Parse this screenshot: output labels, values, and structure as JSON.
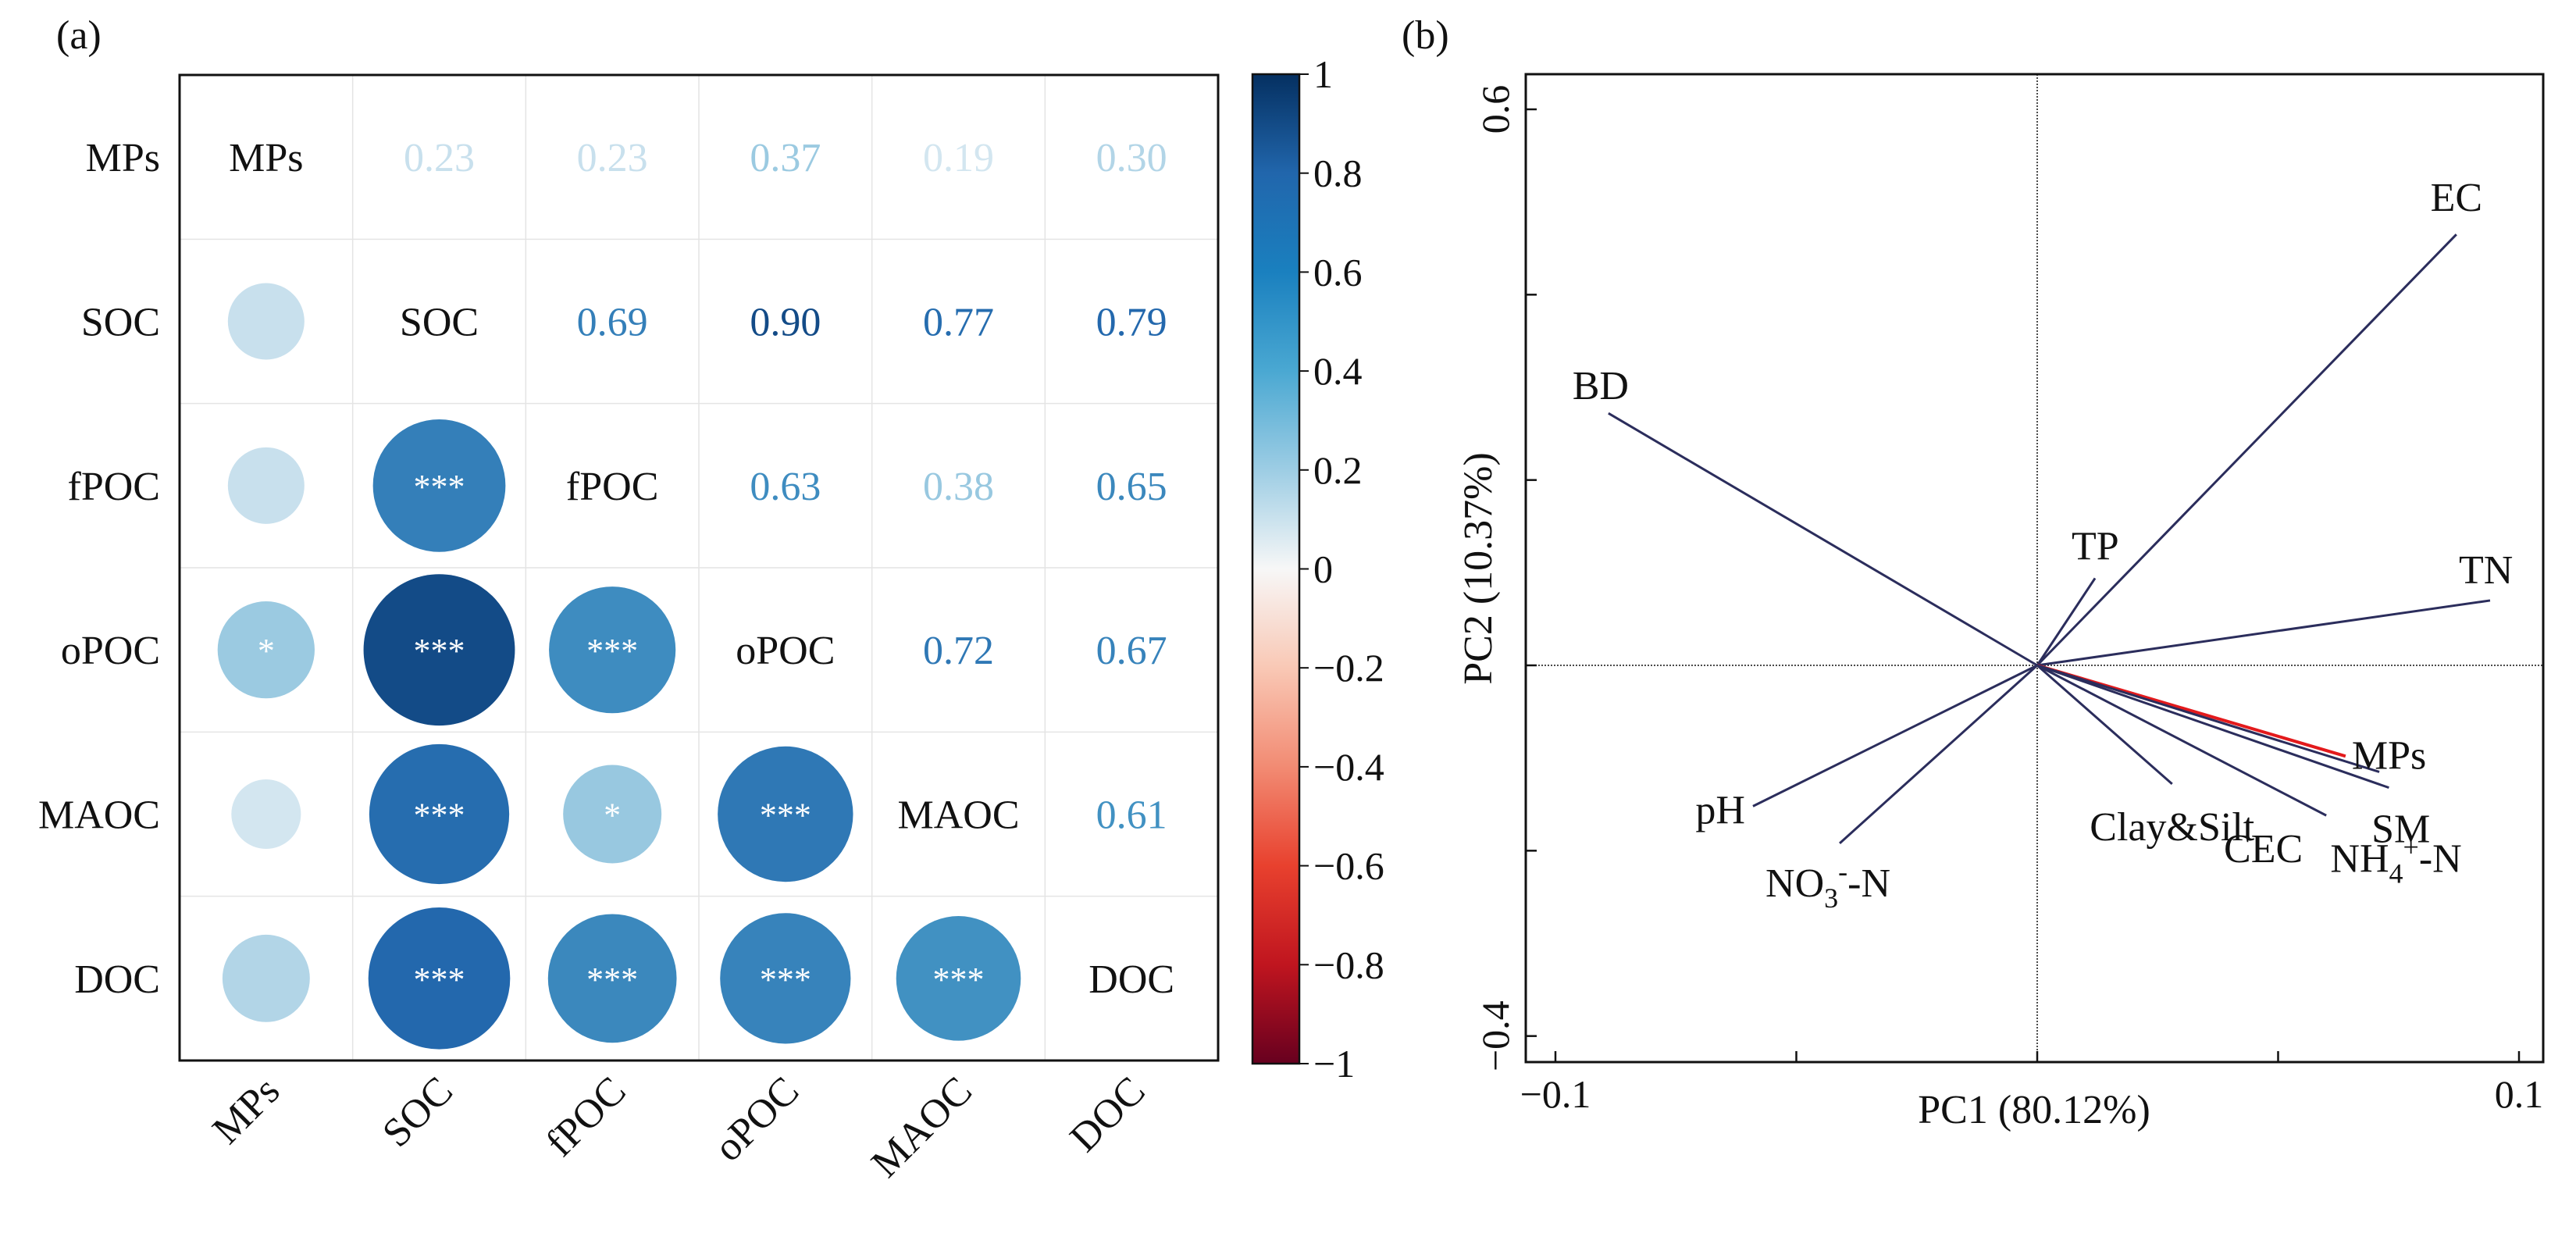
{
  "panel_a_label": "(a)",
  "panel_b_label": "(b)",
  "colors": {
    "positive_dark": "#053061",
    "negative_dark": "#67001f",
    "mps_arrow": "#e31a1c",
    "arrow": "#2b2d5c"
  },
  "chart_data": [
    {
      "type": "heatmap",
      "title": "",
      "variables": [
        "MPs",
        "SOC",
        "fPOC",
        "oPOC",
        "MAOC",
        "DOC"
      ],
      "upper_values": [
        [
          null,
          0.23,
          0.23,
          0.37,
          0.19,
          0.3
        ],
        [
          null,
          null,
          0.69,
          0.9,
          0.77,
          0.79
        ],
        [
          null,
          null,
          null,
          0.63,
          0.38,
          0.65
        ],
        [
          null,
          null,
          null,
          null,
          0.72,
          0.67
        ],
        [
          null,
          null,
          null,
          null,
          null,
          0.61
        ],
        [
          null,
          null,
          null,
          null,
          null,
          null
        ]
      ],
      "significance": [
        [
          null,
          "",
          "",
          "",
          "",
          ""
        ],
        [
          "",
          null,
          "***",
          "***",
          "***",
          "***"
        ],
        [
          "",
          "***",
          null,
          "***",
          "*",
          "***"
        ],
        [
          "*",
          "***",
          "***",
          null,
          "***",
          "***"
        ],
        [
          "",
          "***",
          "*",
          "***",
          null,
          "***"
        ],
        [
          "",
          "***",
          "***",
          "***",
          "***",
          null
        ]
      ],
      "colorbar": {
        "ticks": [
          "1",
          "0.8",
          "0.6",
          "0.4",
          "0.2",
          "0",
          "−0.2",
          "−0.4",
          "−0.6",
          "−0.8",
          "−1"
        ],
        "range": [
          -1,
          1
        ]
      }
    },
    {
      "type": "biplot",
      "xlabel": "PC1 (80.12%)",
      "ylabel": "PC2 (10.37%)",
      "xlim": [
        -0.1,
        0.1
      ],
      "ylim": [
        -0.4,
        0.6
      ],
      "x_tick_labels": [
        "−0.1",
        "0.1"
      ],
      "y_tick_labels": [
        "0.6",
        "−0.4"
      ],
      "vectors": [
        {
          "name": "EC",
          "x": 0.087,
          "y": 0.465,
          "color": "#2b2d5c"
        },
        {
          "name": "BD",
          "x": -0.089,
          "y": 0.272,
          "color": "#2b2d5c"
        },
        {
          "name": "TP",
          "x": 0.012,
          "y": 0.094,
          "color": "#2b2d5c"
        },
        {
          "name": "TN",
          "x": 0.094,
          "y": 0.07,
          "color": "#2b2d5c"
        },
        {
          "name": "MPs",
          "x": 0.064,
          "y": -0.098,
          "color": "#e31a1c"
        },
        {
          "name": "SM",
          "x": 0.071,
          "y": -0.115,
          "color": "#2b2d5c"
        },
        {
          "name": "NH4+-N",
          "x": 0.073,
          "y": -0.132,
          "color": "#2b2d5c"
        },
        {
          "name": "CEC",
          "x": 0.06,
          "y": -0.162,
          "color": "#2b2d5c"
        },
        {
          "name": "Clay&Silt",
          "x": 0.028,
          "y": -0.128,
          "color": "#2b2d5c"
        },
        {
          "name": "pH",
          "x": -0.059,
          "y": -0.152,
          "color": "#2b2d5c"
        },
        {
          "name": "NO3--N",
          "x": -0.041,
          "y": -0.192,
          "color": "#2b2d5c"
        }
      ]
    }
  ]
}
